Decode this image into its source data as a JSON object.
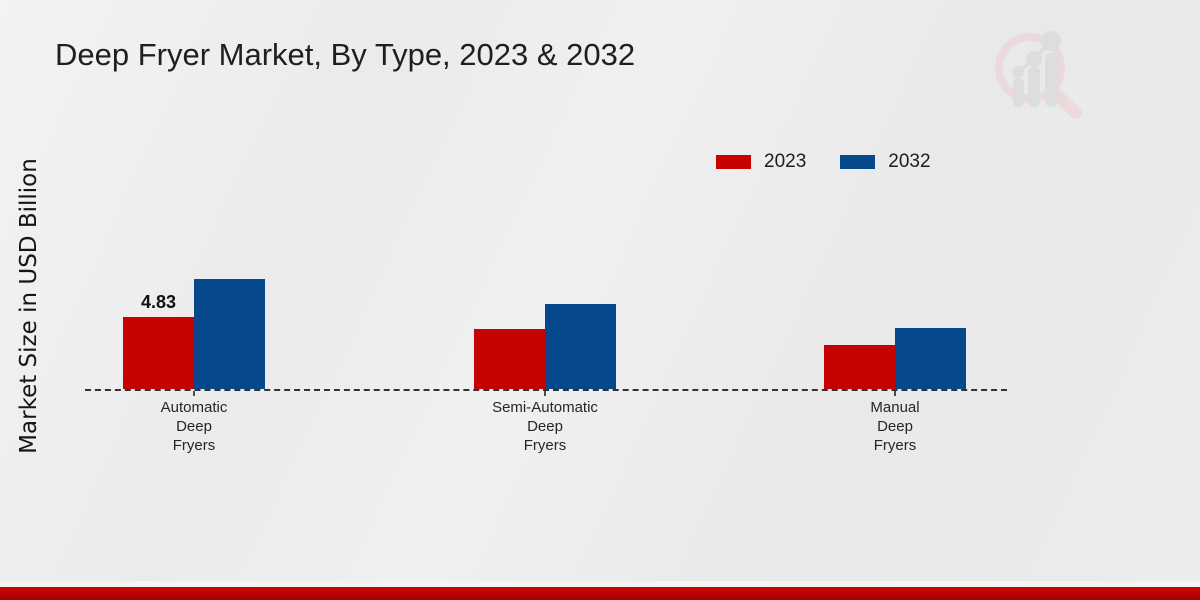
{
  "title": "Deep Fryer Market, By Type, 2023 & 2032",
  "y_axis_label": "Market Size in USD Billion",
  "legend": {
    "position": "top-right",
    "items": [
      {
        "label": "2023",
        "color": "#c70202"
      },
      {
        "label": "2032",
        "color": "#05498c"
      }
    ]
  },
  "chart_data": {
    "type": "bar",
    "categories": [
      "Automatic Deep Fryers",
      "Semi-Automatic Deep Fryers",
      "Manual Deep Fryers"
    ],
    "categories_lines": [
      [
        "Automatic",
        "Deep",
        "Fryers"
      ],
      [
        "Semi-Automatic",
        "Deep",
        "Fryers"
      ],
      [
        "Manual",
        "Deep",
        "Fryers"
      ]
    ],
    "series": [
      {
        "name": "2023",
        "color": "#c70202",
        "values": [
          4.83,
          4.03,
          2.95
        ]
      },
      {
        "name": "2032",
        "color": "#05498c",
        "values": [
          7.38,
          5.7,
          4.1
        ]
      }
    ],
    "data_labels": [
      {
        "series_index": 0,
        "category_index": 0,
        "text": "4.83"
      }
    ],
    "title": "Deep Fryer Market, By Type, 2023 & 2032",
    "xlabel": "",
    "ylabel": "Market Size in USD Billion",
    "ylim": [
      0,
      8
    ],
    "grid": false,
    "legend_position": "top-right",
    "baseline_style": "dashed"
  },
  "branding": {
    "logo": "mrfr-magnifier-chart-watermark",
    "accent_red": "#c00000"
  }
}
